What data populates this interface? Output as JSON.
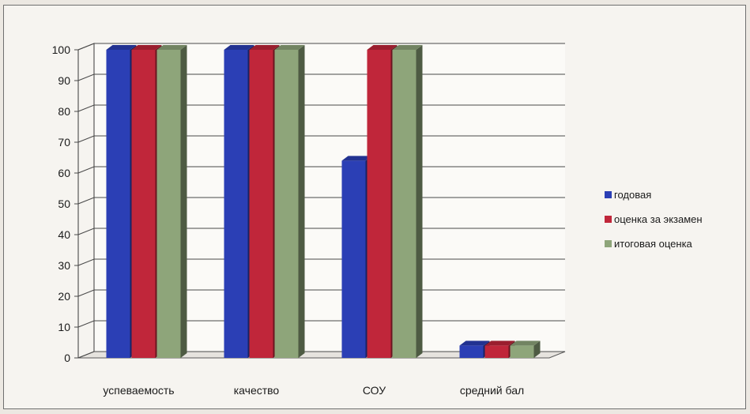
{
  "chart_data": {
    "type": "bar",
    "categories": [
      "успеваемость",
      "качество",
      "СОУ",
      "средний бал"
    ],
    "series": [
      {
        "name": "годовая",
        "values": [
          100,
          100,
          64,
          4
        ],
        "color": "#2b3fb5"
      },
      {
        "name": "оценка за экзамен",
        "values": [
          100,
          100,
          100,
          4
        ],
        "color": "#c0263a"
      },
      {
        "name": "итоговая оценка",
        "values": [
          100,
          100,
          100,
          4
        ],
        "color": "#8ea57a"
      }
    ],
    "yticks": [
      0,
      10,
      20,
      30,
      40,
      50,
      60,
      70,
      80,
      90,
      100
    ],
    "ylim": [
      0,
      100
    ],
    "grid": true,
    "legend_position": "right",
    "style": "3d-clustered-column"
  }
}
